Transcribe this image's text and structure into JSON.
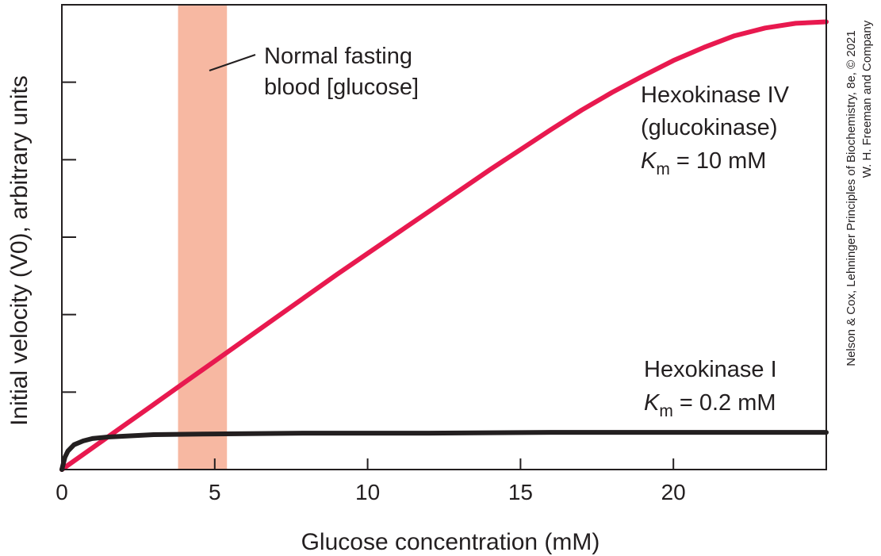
{
  "chart_data": {
    "type": "line",
    "xlabel": "Glucose concentration (mM)",
    "ylabel": "Initial velocity (V0), arbitrary units",
    "xlim": [
      0,
      25
    ],
    "ylim": [
      0,
      6
    ],
    "x_ticks": [
      "0",
      "5",
      "10",
      "15",
      "20"
    ],
    "x_tick_values": [
      0,
      5,
      10,
      15,
      20
    ],
    "y_tick_values": [
      1,
      2,
      3,
      4,
      5
    ],
    "y_tick_labels_shown": false,
    "grid": false,
    "shaded_region": {
      "label_line1": "Normal fasting",
      "label_line2": "blood [glucose]",
      "x_start": 3.8,
      "x_end": 5.4,
      "color": "#f7b8a2"
    },
    "series": [
      {
        "name": "Hexokinase IV (glucokinase)",
        "label_line1": "Hexokinase IV",
        "label_line2": "(glucokinase)",
        "km_symbol": "K",
        "km_sub": "m",
        "km_value": "= 10 mM",
        "color": "#e8194f",
        "x": [
          0,
          1,
          2,
          3,
          4,
          5,
          6,
          7,
          8,
          9,
          10,
          11,
          12,
          13,
          14,
          15,
          16,
          17,
          18,
          19,
          20,
          21,
          22,
          23,
          24,
          25
        ],
        "y": [
          0,
          0.28,
          0.56,
          0.84,
          1.12,
          1.4,
          1.68,
          1.96,
          2.24,
          2.52,
          2.79,
          3.06,
          3.33,
          3.6,
          3.87,
          4.13,
          4.39,
          4.64,
          4.87,
          5.08,
          5.28,
          5.45,
          5.6,
          5.7,
          5.76,
          5.78
        ]
      },
      {
        "name": "Hexokinase I",
        "label_line1": "Hexokinase I",
        "km_symbol": "K",
        "km_sub": "m",
        "km_value": "= 0.2 mM",
        "color": "#231f20",
        "x": [
          0,
          0.1,
          0.2,
          0.4,
          0.7,
          1,
          1.5,
          2,
          3,
          5,
          8,
          12,
          16,
          20,
          25
        ],
        "y": [
          0,
          0.16,
          0.24,
          0.32,
          0.37,
          0.4,
          0.42,
          0.43,
          0.45,
          0.46,
          0.47,
          0.47,
          0.48,
          0.48,
          0.48
        ]
      }
    ]
  },
  "credit": {
    "line1": "Nelson & Cox, Lehninger Principles of Biochemistry, 8e, © 2021",
    "line2": "W. H. Freeman and Company"
  }
}
